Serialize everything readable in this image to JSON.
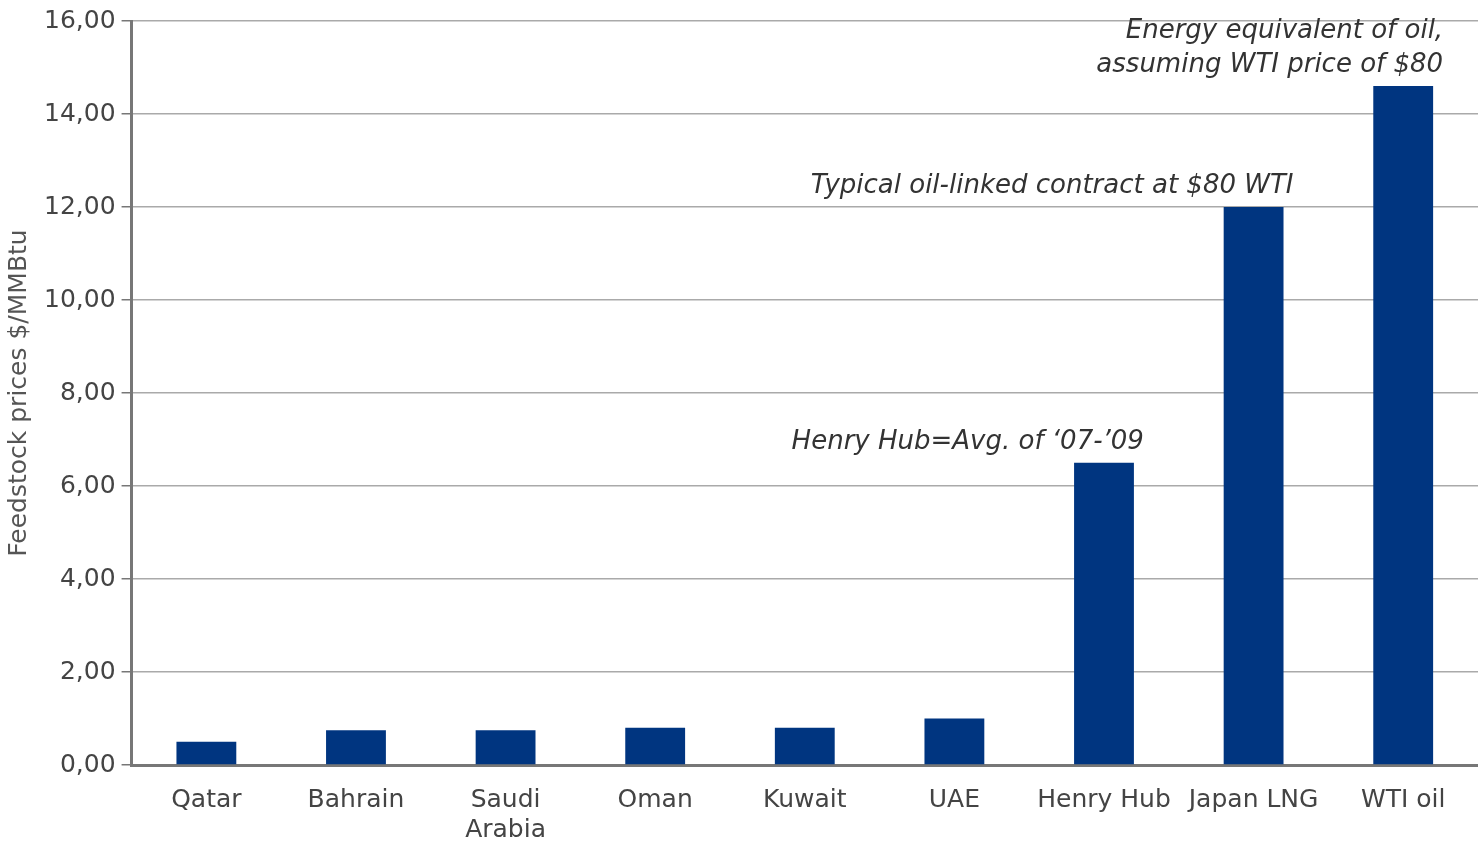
{
  "chart_data": {
    "type": "bar",
    "ylabel": "Feedstock prices $/MMBtu",
    "categories": [
      "Qatar",
      "Bahrain",
      "Saudi Arabia",
      "Oman",
      "Kuwait",
      "UAE",
      "Henry Hub",
      "Japan LNG",
      "WTI oil"
    ],
    "values": [
      0.5,
      0.75,
      0.75,
      0.8,
      0.8,
      1.0,
      6.5,
      12.0,
      14.6
    ],
    "color": "#003580",
    "ylim": [
      0,
      16
    ],
    "yticks": [
      {
        "value": 0,
        "label": "0,00"
      },
      {
        "value": 2,
        "label": "2,00"
      },
      {
        "value": 4,
        "label": "4,00"
      },
      {
        "value": 6,
        "label": "6,00"
      },
      {
        "value": 8,
        "label": "8,00"
      },
      {
        "value": 10,
        "label": "10,00"
      },
      {
        "value": 12,
        "label": "12,00"
      },
      {
        "value": 14,
        "label": "14,00"
      },
      {
        "value": 16,
        "label": "16,00"
      }
    ],
    "grid": "y",
    "legend": false,
    "annotations": [
      {
        "text": "Henry Hub=Avg. of ‘07-’09",
        "x": "Henry Hub",
        "y": 6.5
      },
      {
        "text": "Typical oil-linked contract at $80 WTI",
        "x": "Japan LNG",
        "y": 12.0
      },
      {
        "text": "Energy equivalent of oil,\nassuming WTI price of $80",
        "x": "WTI oil",
        "y": 14.6
      }
    ]
  }
}
